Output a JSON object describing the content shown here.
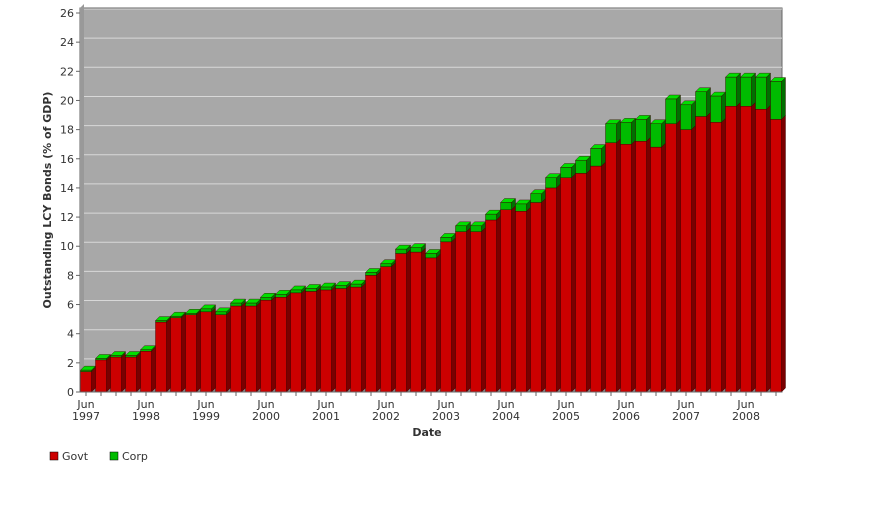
{
  "chart_data": {
    "type": "stacked-bar-3d",
    "x_label": "Date",
    "y_label": "Outstanding LCY Bonds (% of GDP)",
    "categories": [
      "Jun\n1997",
      null,
      null,
      null,
      "Jun\n1998",
      null,
      null,
      null,
      "Jun\n1999",
      null,
      null,
      null,
      "Jun\n2000",
      null,
      null,
      null,
      "Jun\n2001",
      null,
      null,
      null,
      "Jun\n2002",
      null,
      null,
      null,
      "Jun\n2003",
      null,
      null,
      null,
      "Jun\n2004",
      null,
      null,
      null,
      "Jun\n2005",
      null,
      null,
      null,
      "Jun\n2006",
      null,
      null,
      null,
      "Jun\n2007",
      null,
      null,
      null,
      "Jun\n2008",
      null,
      null
    ],
    "series": [
      {
        "name": "Govt",
        "color": "#cc0000",
        "values": [
          1.4,
          2.2,
          2.4,
          2.4,
          2.8,
          4.8,
          5.1,
          5.3,
          5.5,
          5.3,
          5.9,
          5.9,
          6.3,
          6.5,
          6.8,
          6.9,
          7.0,
          7.1,
          7.2,
          8.0,
          8.6,
          9.5,
          9.6,
          9.2,
          10.3,
          11.0,
          11.0,
          11.8,
          12.5,
          12.4,
          13.0,
          14.0,
          14.7,
          15.0,
          15.5,
          17.1,
          17.0,
          17.2,
          16.8,
          18.4,
          18.0,
          18.9,
          18.5,
          19.6,
          19.6,
          19.4,
          18.7
        ]
      },
      {
        "name": "Corp",
        "color": "#00bb00",
        "values": [
          0.1,
          0.1,
          0.1,
          0.1,
          0.1,
          0.1,
          0.1,
          0.1,
          0.2,
          0.2,
          0.2,
          0.2,
          0.2,
          0.2,
          0.2,
          0.2,
          0.2,
          0.2,
          0.2,
          0.2,
          0.2,
          0.3,
          0.3,
          0.3,
          0.3,
          0.4,
          0.4,
          0.4,
          0.5,
          0.5,
          0.6,
          0.7,
          0.7,
          0.9,
          1.2,
          1.3,
          1.5,
          1.5,
          1.6,
          1.7,
          1.7,
          1.7,
          1.8,
          2.0,
          2.0,
          2.2,
          2.6
        ]
      }
    ],
    "ylim": [
      0,
      26
    ],
    "yticks": [
      0,
      2,
      4,
      6,
      8,
      10,
      12,
      14,
      16,
      18,
      20,
      22,
      24,
      26
    ],
    "grid": true,
    "legend": "bottom-left"
  }
}
